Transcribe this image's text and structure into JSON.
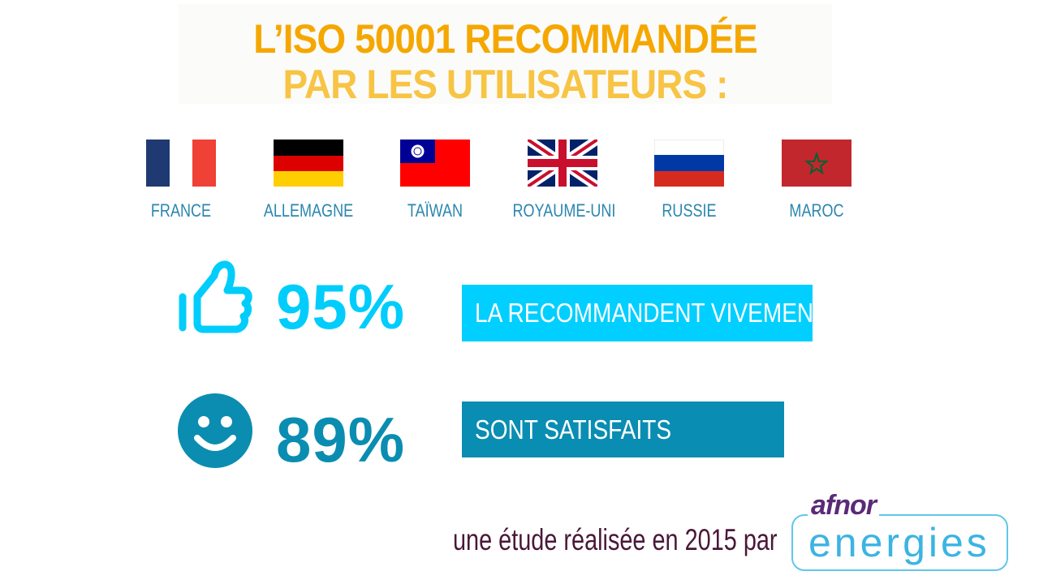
{
  "title": {
    "line1": "L’ISO 50001 RECOMMANDÉE",
    "line2": "PAR LES UTILISATEURS :"
  },
  "countries": [
    {
      "label": "FRANCE",
      "flag": "france-flag"
    },
    {
      "label": "ALLEMAGNE",
      "flag": "germany-flag"
    },
    {
      "label": "TAÏWAN",
      "flag": "taiwan-flag"
    },
    {
      "label": "ROYAUME-UNI",
      "flag": "uk-flag"
    },
    {
      "label": "RUSSIE",
      "flag": "russia-flag"
    },
    {
      "label": "MAROC",
      "flag": "morocco-flag"
    }
  ],
  "stats": [
    {
      "value": "95%",
      "label": "LA RECOMMANDENT VIVEMENT",
      "icon": "thumbs-up-icon",
      "color": "#00cdfb"
    },
    {
      "value": "89%",
      "label": "SONT SATISFAITS",
      "icon": "smiley-icon",
      "color": "#0a8db0"
    }
  ],
  "footer": {
    "text": "une étude réalisée en 2015 par",
    "logo_top": "afnor",
    "logo_bottom": "energies"
  }
}
